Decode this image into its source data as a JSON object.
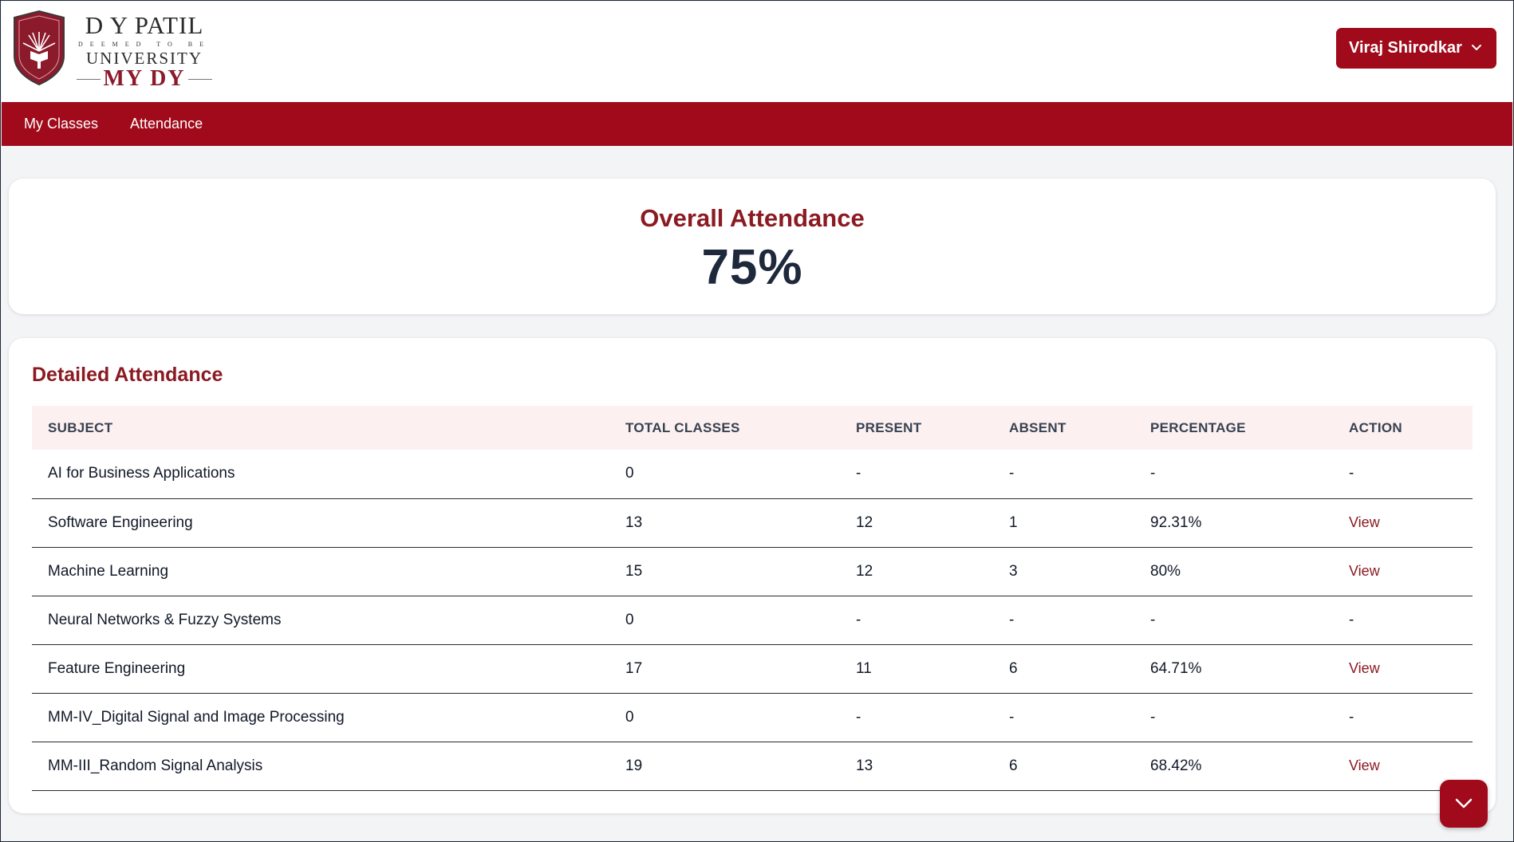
{
  "logo": {
    "title": "D Y PATIL",
    "deemed": "DEEMED TO BE",
    "university": "UNIVERSITY",
    "portal": "MY DY"
  },
  "user": {
    "name": "Viraj Shirodkar"
  },
  "nav": {
    "items": [
      "My Classes",
      "Attendance"
    ]
  },
  "overall": {
    "title": "Overall Attendance",
    "value": "75%"
  },
  "detail": {
    "title": "Detailed Attendance",
    "columns": [
      "SUBJECT",
      "TOTAL CLASSES",
      "PRESENT",
      "ABSENT",
      "PERCENTAGE",
      "ACTION"
    ],
    "rows": [
      {
        "subject": "AI for Business Applications",
        "total": "0",
        "present": "-",
        "absent": "-",
        "percentage": "-",
        "action": "-"
      },
      {
        "subject": "Software Engineering",
        "total": "13",
        "present": "12",
        "absent": "1",
        "percentage": "92.31%",
        "action": "View"
      },
      {
        "subject": "Machine Learning",
        "total": "15",
        "present": "12",
        "absent": "3",
        "percentage": "80%",
        "action": "View"
      },
      {
        "subject": "Neural Networks & Fuzzy Systems",
        "total": "0",
        "present": "-",
        "absent": "-",
        "percentage": "-",
        "action": "-"
      },
      {
        "subject": "Feature Engineering",
        "total": "17",
        "present": "11",
        "absent": "6",
        "percentage": "64.71%",
        "action": "View"
      },
      {
        "subject": "MM-IV_Digital Signal and Image Processing",
        "total": "0",
        "present": "-",
        "absent": "-",
        "percentage": "-",
        "action": "-"
      },
      {
        "subject": "MM-III_Random Signal Analysis",
        "total": "19",
        "present": "13",
        "absent": "6",
        "percentage": "68.42%",
        "action": "View"
      }
    ]
  },
  "colors": {
    "brand": "#a00a1a",
    "heading": "#8b1a22",
    "header_row": "#fdf0f0"
  }
}
